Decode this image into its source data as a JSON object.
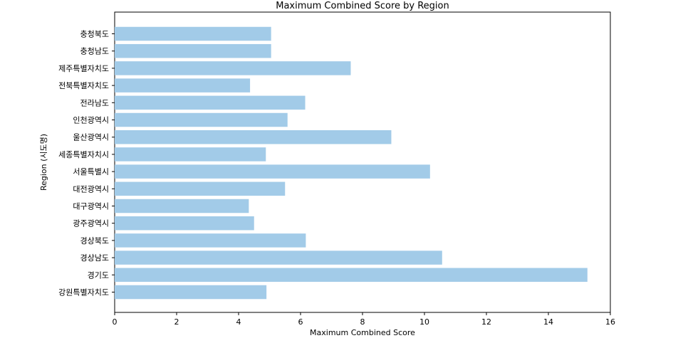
{
  "chart_data": {
    "type": "bar",
    "orientation": "horizontal",
    "title": "Maximum Combined Score by Region",
    "xlabel": "Maximum Combined Score",
    "ylabel": "Region (시도명)",
    "xlim": [
      0,
      16
    ],
    "xticks": [
      0,
      2,
      4,
      6,
      8,
      10,
      12,
      14,
      16
    ],
    "grid": false,
    "bar_color": "#a2cbe8",
    "categories": [
      "충청북도",
      "충청남도",
      "제주특별자치도",
      "전북특별자치도",
      "전라남도",
      "인천광역시",
      "울산광역시",
      "세종특별자치시",
      "서울특별시",
      "대전광역시",
      "대구광역시",
      "광주광역시",
      "경상북도",
      "경상남도",
      "경기도",
      "강원특별자치도"
    ],
    "values": [
      5.05,
      5.05,
      7.62,
      4.37,
      6.15,
      5.58,
      8.93,
      4.88,
      10.18,
      5.5,
      4.33,
      4.5,
      6.17,
      10.57,
      15.26,
      4.9
    ]
  }
}
